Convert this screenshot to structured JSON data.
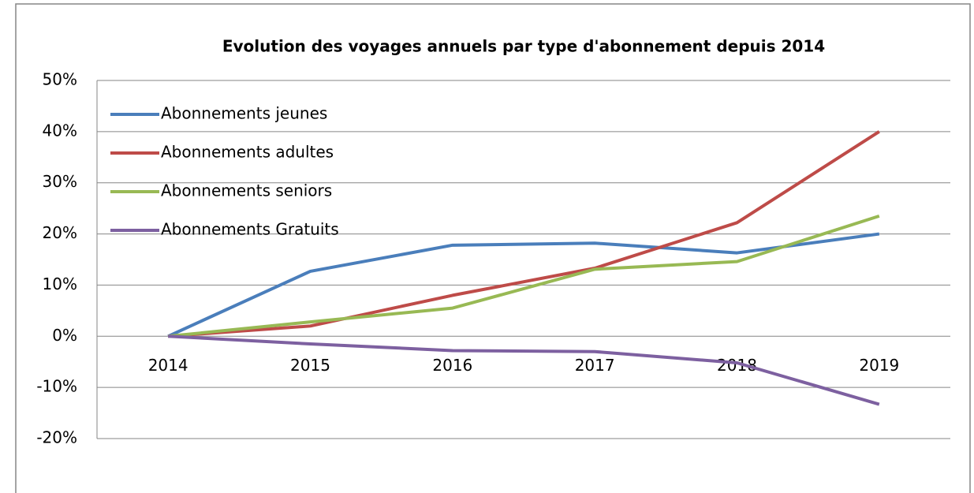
{
  "chart_data": {
    "type": "line",
    "title": "Evolution des voyages annuels par type d'abonnement depuis 2014",
    "categories": [
      "2014",
      "2015",
      "2016",
      "2017",
      "2018",
      "2019"
    ],
    "series": [
      {
        "name": "Abonnements jeunes",
        "color": "#4a7ebb",
        "values": [
          0,
          12.7,
          17.8,
          18.2,
          16.3,
          20.0
        ]
      },
      {
        "name": "Abonnements adultes",
        "color": "#be4b48",
        "values": [
          0,
          2.0,
          8.0,
          13.3,
          22.2,
          40.0
        ]
      },
      {
        "name": "Abonnements seniors",
        "color": "#98b954",
        "values": [
          0,
          2.8,
          5.5,
          13.1,
          14.6,
          23.5
        ]
      },
      {
        "name": "Abonnements Gratuits",
        "color": "#7d60a0",
        "values": [
          0,
          -1.5,
          -2.8,
          -3.0,
          -5.2,
          -13.3
        ]
      }
    ],
    "ylim": [
      -20,
      50
    ],
    "yticks": [
      {
        "value": -20,
        "label": "-20%"
      },
      {
        "value": -10,
        "label": "-10%"
      },
      {
        "value": 0,
        "label": "0%"
      },
      {
        "value": 10,
        "label": "10%"
      },
      {
        "value": 20,
        "label": "20%"
      },
      {
        "value": 30,
        "label": "30%"
      },
      {
        "value": 40,
        "label": "40%"
      },
      {
        "value": 50,
        "label": "50%"
      }
    ],
    "grid": true,
    "legend": "top-left"
  }
}
